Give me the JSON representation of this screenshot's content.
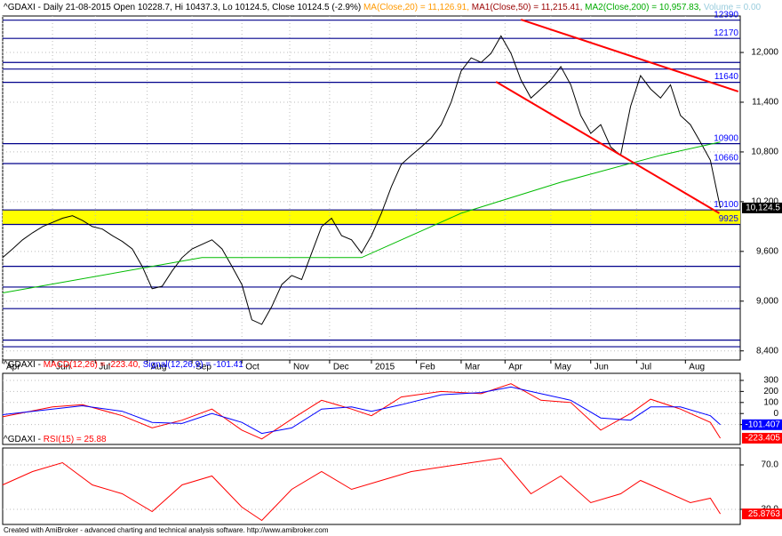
{
  "chart_data": [
    {
      "type": "line",
      "title_parts": [
        {
          "text": "^GDAXI - Daily 21-08-2015 Open 10228.7, Hi 10437.3, Lo 10124.5, Close 10124.5 (-2.9%)",
          "color": "#000000"
        },
        {
          "text": " MA(Close,20) = 11,126.91,",
          "color": "#ff9900"
        },
        {
          "text": " MA1(Close,50) = 11,215.41,",
          "color": "#990000"
        },
        {
          "text": " MA2(Close,200) = 10,957.83,",
          "color": "#00aa00"
        },
        {
          "text": " Volume = 0.00",
          "color": "#99ccdd"
        }
      ],
      "xlim": [
        0,
        74
      ],
      "xticks": [
        {
          "value": 0,
          "label": "Apr"
        },
        {
          "value": 5,
          "label": "Jun"
        },
        {
          "value": 9.3,
          "label": "Jul"
        },
        {
          "value": 14.5,
          "label": "Aug"
        },
        {
          "value": 19,
          "label": "Sep"
        },
        {
          "value": 24,
          "label": "Oct"
        },
        {
          "value": 28.8,
          "label": "Nov"
        },
        {
          "value": 32.8,
          "label": "Dec"
        },
        {
          "value": 37,
          "label": "2015"
        },
        {
          "value": 41.5,
          "label": "Feb"
        },
        {
          "value": 46,
          "label": "Mar"
        },
        {
          "value": 50.4,
          "label": "Apr"
        },
        {
          "value": 55,
          "label": "May"
        },
        {
          "value": 59,
          "label": "Jun"
        },
        {
          "value": 63.6,
          "label": "Jul"
        },
        {
          "value": 68.5,
          "label": "Aug"
        }
      ],
      "ylim": [
        8290,
        12440
      ],
      "yticks": [
        {
          "value": 8400,
          "label": "8,400"
        },
        {
          "value": 9000,
          "label": "9,000"
        },
        {
          "value": 9600,
          "label": "9,600"
        },
        {
          "value": 10200,
          "label": "10,200"
        },
        {
          "value": 10800,
          "label": "10,800"
        },
        {
          "value": 11400,
          "label": "11,400"
        },
        {
          "value": 12000,
          "label": "12,000"
        }
      ],
      "grid": true,
      "band": [
        9925,
        10100
      ],
      "band_color": "#ffff00",
      "level_color": "#00008b",
      "level_label_color": "#0000ff",
      "labeled_levels": [
        12390,
        12170,
        11640,
        10900,
        10660,
        10100,
        9925
      ],
      "unlabeled_levels": [
        11880,
        11800,
        9420,
        9170,
        8910,
        8530,
        8450
      ],
      "trendline_color": "#ff0000",
      "trendlines": [
        {
          "x": [
            49.5,
            71.9
          ],
          "values": [
            11646,
            10061
          ]
        },
        {
          "x": [
            52,
            73.8
          ],
          "values": [
            12396,
            11529
          ]
        }
      ],
      "series": [
        {
          "color": "#000000",
          "x": [
            0,
            1,
            2,
            3,
            4,
            5,
            6,
            7,
            8,
            9,
            10,
            11,
            12,
            13,
            14,
            15,
            16,
            17,
            18,
            19,
            20,
            21,
            22,
            23,
            24,
            25,
            26,
            27,
            28,
            29,
            30,
            31,
            32,
            33,
            34,
            35,
            36,
            37,
            38,
            39,
            40,
            41,
            42,
            43,
            44,
            45,
            46,
            47,
            48,
            49,
            50,
            51,
            52,
            53,
            54,
            55,
            56,
            57,
            58,
            59,
            60,
            61,
            62,
            63,
            64,
            65,
            66,
            67,
            68,
            69,
            70,
            71,
            72
          ],
          "values": [
            9525,
            9630,
            9740,
            9825,
            9900,
            9950,
            10000,
            10030,
            9975,
            9900,
            9870,
            9790,
            9720,
            9630,
            9420,
            9150,
            9180,
            9365,
            9525,
            9630,
            9685,
            9740,
            9630,
            9420,
            9200,
            8775,
            8720,
            8935,
            9200,
            9310,
            9260,
            9580,
            9900,
            10000,
            9790,
            9740,
            9580,
            9790,
            10060,
            10380,
            10650,
            10760,
            10860,
            10970,
            11130,
            11400,
            11775,
            11935,
            11880,
            11990,
            12200,
            11990,
            11670,
            11450,
            11560,
            11670,
            11830,
            11610,
            11240,
            11025,
            11130,
            10860,
            10760,
            11350,
            11720,
            11560,
            11450,
            11610,
            11240,
            11130,
            10920,
            10700,
            10124.5
          ]
        },
        {
          "color": "#00bb00",
          "x": [
            0,
            20,
            36,
            46,
            56,
            66,
            72
          ],
          "values": [
            9100,
            9525,
            9525,
            10060,
            10435,
            10760,
            10920
          ]
        }
      ],
      "value_boxes": [
        {
          "value": 10124.5,
          "label": "10,124.5",
          "color": "#000000"
        }
      ]
    },
    {
      "type": "line",
      "title_parts": [
        {
          "text": "^GDAXI - ",
          "color": "#000000"
        },
        {
          "text": "MACD(12,26) = -223.40,",
          "color": "#ff0000"
        },
        {
          "text": " Signal(12,26,9) = -101.41",
          "color": "#0000ff"
        }
      ],
      "xlim": [
        0,
        74
      ],
      "ylim": [
        -280,
        364
      ],
      "yticks": [
        300,
        200,
        100,
        0,
        -100
      ],
      "grid": true,
      "series": [
        {
          "color": "#ff0000",
          "x": [
            0,
            5,
            8,
            12,
            15,
            18,
            21,
            24,
            26,
            29,
            32,
            35,
            37,
            40,
            44,
            48,
            51,
            54,
            57,
            60,
            63,
            65,
            68,
            71,
            72
          ],
          "values": [
            -30,
            60,
            80,
            -20,
            -130,
            -60,
            40,
            -150,
            -230,
            -50,
            120,
            40,
            -20,
            150,
            200,
            180,
            270,
            120,
            100,
            -150,
            0,
            130,
            40,
            -80,
            -223.4
          ]
        },
        {
          "color": "#0000ff",
          "x": [
            0,
            5,
            8,
            12,
            15,
            18,
            21,
            24,
            26,
            29,
            32,
            35,
            37,
            40,
            44,
            48,
            51,
            54,
            57,
            60,
            63,
            65,
            68,
            71,
            72
          ],
          "values": [
            -10,
            40,
            70,
            20,
            -80,
            -90,
            0,
            -80,
            -180,
            -130,
            40,
            60,
            20,
            80,
            170,
            190,
            240,
            180,
            120,
            -40,
            -60,
            60,
            60,
            -20,
            -101.41
          ]
        }
      ],
      "value_boxes": [
        {
          "value": -101.407,
          "color": "#0000ff"
        },
        {
          "value": -223.405,
          "color": "#ff0000"
        }
      ]
    },
    {
      "type": "line",
      "title_parts": [
        {
          "text": "^GDAXI - ",
          "color": "#000000"
        },
        {
          "text": "RSI(15) = 25.88",
          "color": "#ff0000"
        }
      ],
      "xlim": [
        0,
        74
      ],
      "ylim": [
        16.4,
        85.2
      ],
      "yticks": [
        {
          "value": 70,
          "label": "70.0"
        },
        {
          "value": 30,
          "label": "30.0"
        }
      ],
      "grid": true,
      "series": [
        {
          "color": "#ff0000",
          "x": [
            0,
            3,
            6,
            9,
            12,
            15,
            18,
            21,
            24,
            26,
            29,
            32,
            35,
            38,
            41,
            44,
            47,
            50,
            53,
            56,
            59,
            62,
            64,
            66,
            69,
            71,
            72
          ],
          "values": [
            52,
            64,
            72,
            52,
            44,
            28,
            52,
            60,
            32,
            20,
            48,
            64,
            48,
            56,
            64,
            68,
            72,
            76,
            44,
            60,
            36,
            44,
            56,
            48,
            36,
            40,
            25.88
          ]
        }
      ],
      "value_boxes": [
        {
          "value": 25.8763,
          "color": "#ff0000"
        }
      ]
    }
  ],
  "footer": "Created with AmiBroker - advanced charting and technical analysis software. http://www.amibroker.com"
}
